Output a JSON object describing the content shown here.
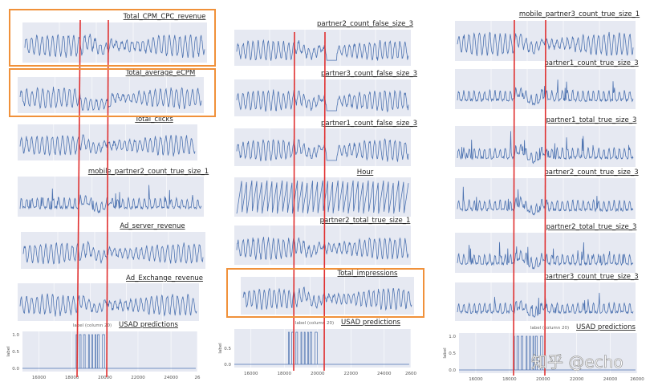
{
  "colors": {
    "line": "#4c72b0",
    "plot_bg": "#e6e9f2",
    "anomaly_marker": "#e03030",
    "highlight_box": "#f0913a"
  },
  "watermark": "知乎 @echo",
  "columns": [
    {
      "panels": [
        {
          "title": "Total_CPM_CPC_revenue",
          "highlighted": true
        },
        {
          "title": "Total_average_eCPM",
          "highlighted": true
        },
        {
          "title": "Total_clicks"
        },
        {
          "title": "mobile_partner2_count_true_size_1"
        },
        {
          "title": "Ad_server_revenue"
        },
        {
          "title": "Ad_Exchange_revenue"
        }
      ],
      "label_chart": {
        "title": "USAD predictions",
        "subtitle": "label (column 20)",
        "ylabel": "label",
        "yticks": [
          "1.0",
          "0.5",
          "0.0"
        ],
        "xticks": [
          "16000",
          "18000",
          "20000",
          "22000",
          "24000",
          "26"
        ]
      }
    },
    {
      "panels": [
        {
          "title": "partner2_count_false_size_3"
        },
        {
          "title": "partner3_count_false_size_3"
        },
        {
          "title": "partner1_count_false_size_3"
        },
        {
          "title": "Hour"
        },
        {
          "title": "partner2_total_true_size_1"
        },
        {
          "title": "Total_impressions",
          "highlighted": true
        }
      ],
      "label_chart": {
        "title": "USAD predictions",
        "subtitle": "label (column 20)",
        "ylabel": "label",
        "yticks": [
          "",
          "0.5",
          "0.0"
        ],
        "xticks": [
          "16000",
          "18000",
          "20000",
          "22000",
          "24000",
          "2600"
        ]
      }
    },
    {
      "panels": [
        {
          "title": "mobile_partner3_count_true_size_1"
        },
        {
          "title": "partner1_count_true_size_3"
        },
        {
          "title": "partner1_total_true_size_3"
        },
        {
          "title": "partner2_count_true_size_3"
        },
        {
          "title": "partner2_total_true_size_3"
        },
        {
          "title": "partner3_count_true_size_3"
        }
      ],
      "label_chart": {
        "title": "USAD predictions",
        "subtitle": "label (column 20)",
        "ylabel": "label",
        "yticks": [
          "1.0",
          "0.5",
          "0.0"
        ],
        "xticks": [
          "16000",
          "18000",
          "20000",
          "22000",
          "24000",
          "26000"
        ]
      }
    }
  ],
  "chart_data": {
    "type": "line",
    "xlim": [
      15000,
      25600
    ],
    "label_ylim": [
      0,
      1
    ],
    "anomaly_window": [
      18150,
      20050
    ],
    "predicted_label_segments": [
      [
        18250,
        18300
      ],
      [
        18450,
        18550
      ],
      [
        18700,
        18800
      ],
      [
        19000,
        19050
      ],
      [
        19200,
        19250
      ],
      [
        19400,
        19450
      ],
      [
        19550,
        19650
      ],
      [
        19850,
        19980
      ]
    ],
    "grid": true
  }
}
